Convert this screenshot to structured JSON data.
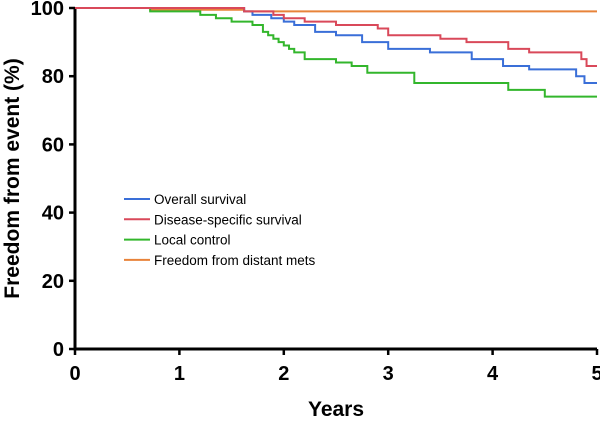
{
  "chart_data": {
    "type": "line",
    "xlabel": "Years",
    "ylabel": "Freedom from event (%)",
    "xlim": [
      0,
      5
    ],
    "ylim": [
      0,
      100
    ],
    "xticks": [
      0,
      1,
      2,
      3,
      4,
      5
    ],
    "yticks": [
      0,
      20,
      40,
      60,
      80,
      100
    ],
    "grid": false,
    "legend_position": "center-left",
    "series": [
      {
        "name": "Overall survival",
        "color": "#3a6fd8",
        "x": [
          0,
          1.62,
          1.7,
          1.88,
          2.0,
          2.1,
          2.3,
          2.5,
          2.75,
          3.0,
          3.4,
          3.8,
          4.1,
          4.35,
          4.8,
          4.88,
          5.0
        ],
        "y": [
          100,
          99,
          98,
          97,
          96,
          95,
          93,
          92,
          90,
          88,
          87,
          85,
          83,
          82,
          80,
          78,
          78
        ]
      },
      {
        "name": "Disease-specific survival",
        "color": "#d9495a",
        "x": [
          0,
          1.62,
          1.9,
          2.0,
          2.2,
          2.5,
          2.9,
          3.0,
          3.5,
          3.75,
          4.15,
          4.35,
          4.85,
          4.9,
          5.0
        ],
        "y": [
          100,
          99,
          98,
          97,
          96,
          95,
          94,
          92,
          91,
          90,
          88,
          87,
          85,
          83,
          83
        ]
      },
      {
        "name": "Local control",
        "color": "#33b62c",
        "x": [
          0,
          0.72,
          1.2,
          1.35,
          1.5,
          1.7,
          1.8,
          1.85,
          1.9,
          1.95,
          2.0,
          2.05,
          2.1,
          2.2,
          2.5,
          2.65,
          2.8,
          3.0,
          3.25,
          4.15,
          4.5,
          5.0
        ],
        "y": [
          100,
          99,
          98,
          97,
          96,
          95,
          93,
          92,
          91,
          90,
          89,
          88,
          87,
          85,
          84,
          83,
          81,
          81,
          78,
          76,
          74,
          74
        ]
      },
      {
        "name": "Freedom from distant mets",
        "color": "#e8833a",
        "x": [
          0,
          0.72,
          1.62,
          5.0
        ],
        "y": [
          100,
          99.5,
          99,
          99
        ]
      }
    ]
  }
}
